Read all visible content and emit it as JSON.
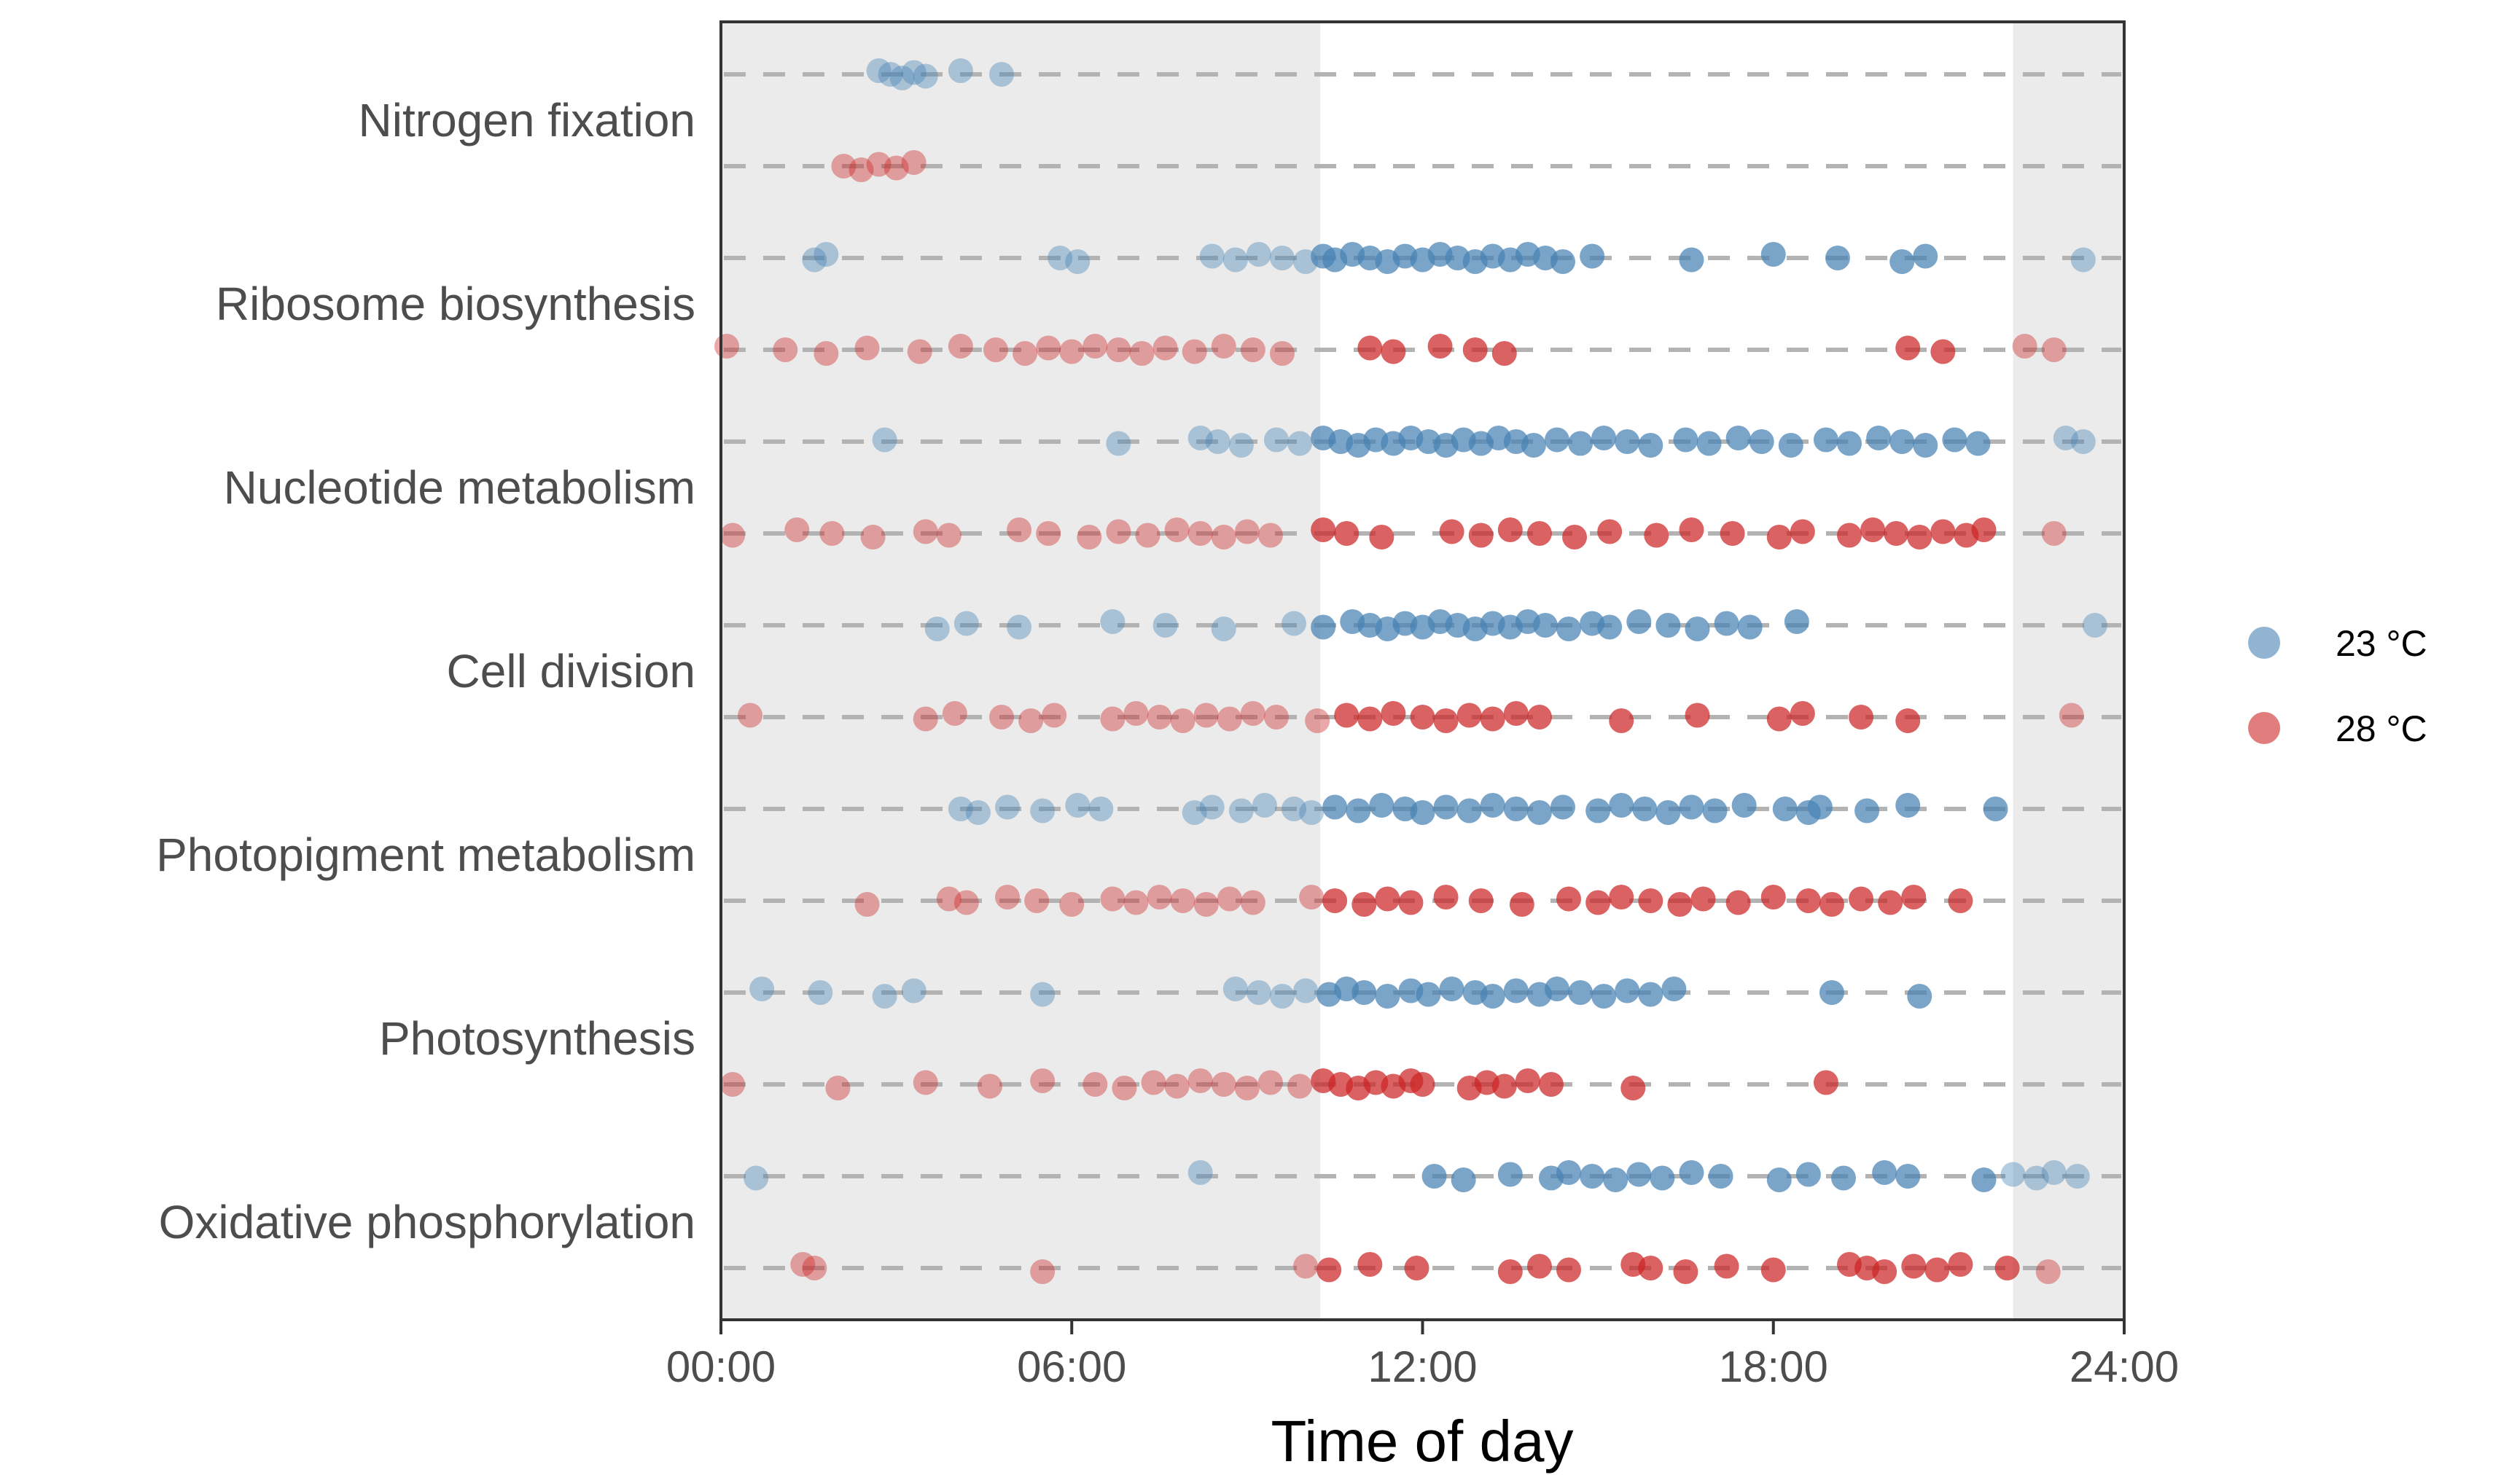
{
  "chart_data": {
    "type": "scatter",
    "xlabel": "Time of day",
    "ylabel": "",
    "xlim": [
      0,
      24
    ],
    "x_ticks": [
      "00:00",
      "06:00",
      "12:00",
      "18:00",
      "24:00"
    ],
    "grid": false,
    "legend_position": "right",
    "dark_periods_hours": [
      [
        0,
        10.25
      ],
      [
        22.1,
        24
      ]
    ],
    "categories": [
      "Nitrogen fixation",
      "Ribosome biosynthesis",
      "Nucleotide metabolism",
      "Cell division",
      "Photopigment metabolism",
      "Photosynthesis",
      "Oxidative phosphorylation"
    ],
    "series": [
      {
        "name": "23 °C",
        "color": "#4682b4",
        "values_by_category": [
          [
            2.7,
            2.9,
            3.1,
            3.3,
            3.5,
            4.1,
            4.8
          ],
          [
            1.6,
            1.8,
            5.8,
            6.1,
            8.4,
            8.8,
            9.2,
            9.6,
            10.0,
            10.3,
            10.5,
            10.8,
            11.1,
            11.4,
            11.7,
            12.0,
            12.3,
            12.6,
            12.9,
            13.2,
            13.5,
            13.8,
            14.1,
            14.4,
            14.9,
            16.6,
            18.0,
            19.1,
            20.2,
            20.6,
            23.3
          ],
          [
            2.8,
            6.8,
            8.2,
            8.5,
            8.9,
            9.5,
            9.9,
            10.3,
            10.6,
            10.9,
            11.2,
            11.5,
            11.8,
            12.1,
            12.4,
            12.7,
            13.0,
            13.3,
            13.6,
            13.9,
            14.3,
            14.7,
            15.1,
            15.5,
            15.9,
            16.5,
            16.9,
            17.4,
            17.8,
            18.3,
            18.9,
            19.3,
            19.8,
            20.2,
            20.6,
            21.1,
            21.5,
            23.0,
            23.3
          ],
          [
            3.7,
            4.2,
            5.1,
            6.7,
            7.6,
            8.6,
            9.8,
            10.3,
            10.8,
            11.1,
            11.4,
            11.7,
            12.0,
            12.3,
            12.6,
            12.9,
            13.2,
            13.5,
            13.8,
            14.1,
            14.5,
            14.9,
            15.2,
            15.7,
            16.2,
            16.7,
            17.2,
            17.6,
            18.4,
            23.5
          ],
          [
            4.1,
            4.4,
            4.9,
            5.5,
            6.1,
            6.5,
            8.1,
            8.4,
            8.9,
            9.3,
            9.8,
            10.1,
            10.5,
            10.9,
            11.3,
            11.7,
            12.0,
            12.4,
            12.8,
            13.2,
            13.6,
            14.0,
            14.4,
            15.0,
            15.4,
            15.8,
            16.2,
            16.6,
            17.0,
            17.5,
            18.2,
            18.6,
            18.8,
            19.6,
            20.3,
            21.8
          ],
          [
            0.7,
            1.7,
            2.8,
            3.3,
            5.5,
            8.8,
            9.2,
            9.6,
            10.0,
            10.4,
            10.7,
            11.0,
            11.4,
            11.8,
            12.1,
            12.5,
            12.9,
            13.2,
            13.6,
            14.0,
            14.3,
            14.7,
            15.1,
            15.5,
            15.9,
            16.3,
            19.0,
            20.5
          ],
          [
            0.6,
            8.2,
            12.2,
            12.7,
            13.5,
            14.2,
            14.5,
            14.9,
            15.3,
            15.7,
            16.1,
            16.6,
            17.1,
            18.1,
            18.6,
            19.2,
            19.9,
            20.3,
            21.6,
            22.1,
            22.5,
            22.8,
            23.2
          ]
        ]
      },
      {
        "name": "28 °C",
        "color": "#cd2626",
        "values_by_category": [
          [
            2.1,
            2.4,
            2.7,
            3.0,
            3.3
          ],
          [
            0.1,
            1.1,
            1.8,
            2.5,
            3.4,
            4.1,
            4.7,
            5.2,
            5.6,
            6.0,
            6.4,
            6.8,
            7.2,
            7.6,
            8.1,
            8.6,
            9.1,
            9.6,
            11.1,
            11.5,
            12.3,
            12.9,
            13.4,
            20.3,
            20.9,
            22.3,
            22.8
          ],
          [
            0.2,
            1.3,
            1.9,
            2.6,
            3.5,
            3.9,
            5.1,
            5.6,
            6.3,
            6.8,
            7.3,
            7.8,
            8.2,
            8.6,
            9.0,
            9.4,
            10.3,
            10.7,
            11.3,
            12.5,
            13.0,
            13.5,
            14.0,
            14.6,
            15.2,
            16.0,
            16.6,
            17.3,
            18.1,
            18.5,
            19.3,
            19.7,
            20.1,
            20.5,
            20.9,
            21.3,
            21.6,
            22.8
          ],
          [
            0.5,
            3.5,
            4.0,
            4.8,
            5.3,
            5.7,
            6.7,
            7.1,
            7.5,
            7.9,
            8.3,
            8.7,
            9.1,
            9.5,
            10.2,
            10.7,
            11.1,
            11.5,
            12.0,
            12.4,
            12.8,
            13.2,
            13.6,
            14.0,
            15.4,
            16.7,
            18.1,
            18.5,
            19.5,
            20.3,
            23.1
          ],
          [
            2.5,
            3.9,
            4.2,
            4.9,
            5.4,
            6.0,
            6.7,
            7.1,
            7.5,
            7.9,
            8.3,
            8.7,
            9.1,
            10.1,
            10.5,
            11.0,
            11.4,
            11.8,
            12.4,
            13.0,
            13.7,
            14.5,
            15.0,
            15.4,
            15.9,
            16.4,
            16.8,
            17.4,
            18.0,
            18.6,
            19.0,
            19.5,
            20.0,
            20.4,
            21.2
          ],
          [
            0.2,
            2.0,
            3.5,
            4.6,
            5.5,
            6.4,
            6.9,
            7.4,
            7.8,
            8.2,
            8.6,
            9.0,
            9.4,
            9.9,
            10.3,
            10.6,
            10.9,
            11.2,
            11.5,
            11.8,
            12.0,
            12.8,
            13.1,
            13.4,
            13.8,
            14.2,
            15.6,
            18.9
          ],
          [
            1.4,
            1.6,
            5.5,
            10.0,
            10.4,
            11.1,
            11.9,
            13.5,
            14.0,
            14.5,
            15.6,
            15.9,
            16.5,
            17.2,
            18.0,
            19.3,
            19.6,
            19.9,
            20.4,
            20.8,
            21.2,
            22.0,
            22.7
          ]
        ]
      }
    ]
  }
}
